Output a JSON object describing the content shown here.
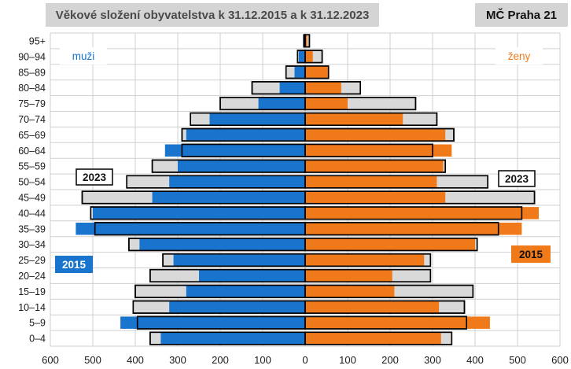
{
  "title": "Věkové složení obyvatelstva k 31.12.2015 a k 31.12.2023",
  "district": "MČ Praha 21",
  "chart_data": {
    "type": "bar",
    "orientation": "horizontal",
    "subtype": "population-pyramid",
    "categories": [
      "0–4",
      "5–9",
      "10–14",
      "15–19",
      "20–24",
      "25–29",
      "30–34",
      "35–39",
      "40–44",
      "45–49",
      "50–54",
      "55–59",
      "60–64",
      "65–69",
      "70–74",
      "75–79",
      "80–84",
      "85–89",
      "90–94",
      "95+"
    ],
    "xlim": [
      -600,
      600
    ],
    "xticks": [
      600,
      500,
      400,
      300,
      200,
      100,
      0,
      100,
      200,
      300,
      400,
      500,
      600
    ],
    "grid": true,
    "sex_labels": {
      "male": "muži",
      "female": "ženy"
    },
    "year_labels": {
      "current": "2023",
      "past": "2015"
    },
    "series": [
      {
        "name": "2015",
        "sex": "male",
        "color": "#1874cd",
        "values": [
          340,
          435,
          320,
          280,
          250,
          310,
          390,
          540,
          500,
          360,
          320,
          300,
          330,
          280,
          225,
          110,
          60,
          25,
          15,
          5
        ]
      },
      {
        "name": "2023",
        "sex": "male",
        "color": "#d9d9d9",
        "outline": "#000000",
        "values": [
          365,
          395,
          405,
          400,
          365,
          335,
          415,
          495,
          505,
          525,
          420,
          360,
          290,
          290,
          270,
          200,
          125,
          45,
          18,
          3
        ]
      },
      {
        "name": "2015",
        "sex": "female",
        "color": "#f07a1a",
        "values": [
          320,
          435,
          315,
          210,
          205,
          280,
          400,
          510,
          550,
          330,
          310,
          325,
          345,
          330,
          230,
          100,
          85,
          55,
          18,
          5
        ]
      },
      {
        "name": "2023",
        "sex": "female",
        "color": "#d9d9d9",
        "outline": "#000000",
        "values": [
          345,
          380,
          375,
          395,
          295,
          295,
          405,
          455,
          510,
          540,
          430,
          330,
          300,
          350,
          310,
          260,
          130,
          55,
          40,
          10
        ]
      }
    ],
    "colors": {
      "male": "#1874cd",
      "female": "#f07a1a",
      "grid": "#cfcfcf",
      "text": "#1a1a1a"
    }
  }
}
